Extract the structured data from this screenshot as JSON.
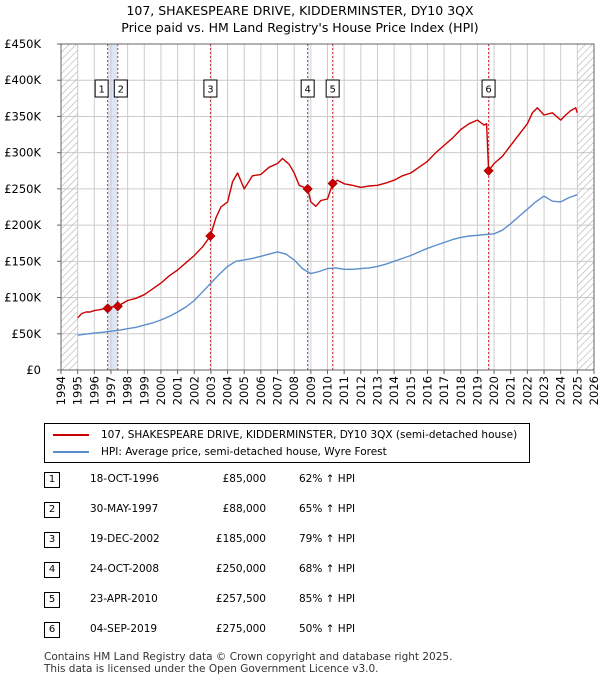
{
  "header": {
    "title_line1": "107, SHAKESPEARE DRIVE, KIDDERMINSTER, DY10 3QX",
    "title_line2": "Price paid vs. HM Land Registry's House Price Index (HPI)"
  },
  "legend": {
    "property_label": "107, SHAKESPEARE DRIVE, KIDDERMINSTER, DY10 3QX (semi-detached house)",
    "hpi_label": "HPI: Average price, semi-detached house, Wyre Forest"
  },
  "colors": {
    "property_line": "#cc0000",
    "hpi_line": "#5b8fcc",
    "marker_line": "#cc0000",
    "grid": "#cccccc",
    "hatch": "#bbbbbb",
    "shade": "#dce6f5"
  },
  "sales": [
    {
      "num": "1",
      "date": "18-OCT-1996",
      "price": "£85,000",
      "hpi": "62% ↑ HPI"
    },
    {
      "num": "2",
      "date": "30-MAY-1997",
      "price": "£88,000",
      "hpi": "65% ↑ HPI"
    },
    {
      "num": "3",
      "date": "19-DEC-2002",
      "price": "£185,000",
      "hpi": "79% ↑ HPI"
    },
    {
      "num": "4",
      "date": "24-OCT-2008",
      "price": "£250,000",
      "hpi": "68% ↑ HPI"
    },
    {
      "num": "5",
      "date": "23-APR-2010",
      "price": "£257,500",
      "hpi": "85% ↑ HPI"
    },
    {
      "num": "6",
      "date": "04-SEP-2019",
      "price": "£275,000",
      "hpi": "50% ↑ HPI"
    }
  ],
  "footer": {
    "line1": "Contains HM Land Registry data © Crown copyright and database right 2025.",
    "line2": "This data is licensed under the Open Government Licence v3.0."
  },
  "chart_data": {
    "type": "line",
    "title": "107, SHAKESPEARE DRIVE, KIDDERMINSTER, DY10 3QX",
    "subtitle": "Price paid vs. HM Land Registry's House Price Index (HPI)",
    "xlabel": "",
    "ylabel": "",
    "xlim": [
      1994,
      2026
    ],
    "ylim": [
      0,
      450000
    ],
    "x_ticks": [
      "1994",
      "1995",
      "1996",
      "1997",
      "1998",
      "1999",
      "2000",
      "2001",
      "2002",
      "2003",
      "2004",
      "2005",
      "2006",
      "2007",
      "2008",
      "2009",
      "2010",
      "2011",
      "2012",
      "2013",
      "2014",
      "2015",
      "2016",
      "2017",
      "2018",
      "2019",
      "2020",
      "2021",
      "2022",
      "2023",
      "2024",
      "2025",
      "2026"
    ],
    "y_ticks": [
      {
        "value": 0,
        "label": "£0"
      },
      {
        "value": 50000,
        "label": "£50K"
      },
      {
        "value": 100000,
        "label": "£100K"
      },
      {
        "value": 150000,
        "label": "£150K"
      },
      {
        "value": 200000,
        "label": "£200K"
      },
      {
        "value": 250000,
        "label": "£250K"
      },
      {
        "value": 300000,
        "label": "£300K"
      },
      {
        "value": 350000,
        "label": "£350K"
      },
      {
        "value": 400000,
        "label": "£400K"
      },
      {
        "value": 450000,
        "label": "£450K"
      }
    ],
    "grid": true,
    "hatched_before": 1995.0,
    "hatched_after": 2025.0,
    "shaded_ranges": [
      [
        1996.8,
        1997.41
      ],
      [
        2002.97,
        2003.05
      ],
      [
        2008.81,
        2008.9
      ],
      [
        2010.31,
        2010.39
      ],
      [
        2019.67,
        2019.76
      ]
    ],
    "sale_markers": [
      {
        "label": "1",
        "x": 1996.8,
        "y": 85000
      },
      {
        "label": "2",
        "x": 1997.41,
        "y": 88000
      },
      {
        "label": "3",
        "x": 2002.97,
        "y": 185000
      },
      {
        "label": "4",
        "x": 2008.81,
        "y": 250000
      },
      {
        "label": "5",
        "x": 2010.31,
        "y": 257500
      },
      {
        "label": "6",
        "x": 2019.67,
        "y": 275000
      }
    ],
    "series": [
      {
        "name": "107, SHAKESPEARE DRIVE, KIDDERMINSTER, DY10 3QX (semi-detached house)",
        "x": [
          1995.0,
          1995.25,
          1995.5,
          1995.75,
          1996.0,
          1996.25,
          1996.5,
          1996.8,
          1997.0,
          1997.41,
          1997.7,
          1998.0,
          1998.5,
          1999.0,
          1999.5,
          2000.0,
          2000.5,
          2001.0,
          2001.5,
          2002.0,
          2002.5,
          2002.97,
          2003.3,
          2003.6,
          2004.0,
          2004.3,
          2004.6,
          2005.0,
          2005.5,
          2006.0,
          2006.5,
          2007.0,
          2007.3,
          2007.7,
          2008.0,
          2008.3,
          2008.6,
          2008.81,
          2009.0,
          2009.3,
          2009.6,
          2010.0,
          2010.31,
          2010.6,
          2011.0,
          2011.5,
          2012.0,
          2012.5,
          2013.0,
          2013.5,
          2014.0,
          2014.5,
          2015.0,
          2015.5,
          2016.0,
          2016.5,
          2017.0,
          2017.5,
          2018.0,
          2018.5,
          2019.0,
          2019.4,
          2019.55,
          2019.67,
          2020.0,
          2020.5,
          2021.0,
          2021.5,
          2022.0,
          2022.3,
          2022.6,
          2023.0,
          2023.5,
          2024.0,
          2024.3,
          2024.6,
          2024.9,
          2025.0
        ],
        "values": [
          72000,
          78000,
          80000,
          80000,
          82000,
          83000,
          84000,
          85000,
          87000,
          88000,
          92000,
          96000,
          99000,
          104000,
          112000,
          120000,
          130000,
          138000,
          148000,
          158000,
          170000,
          185000,
          210000,
          225000,
          232000,
          260000,
          272000,
          250000,
          268000,
          270000,
          280000,
          285000,
          292000,
          284000,
          272000,
          255000,
          252000,
          250000,
          232000,
          226000,
          234000,
          236000,
          257500,
          262000,
          257000,
          255000,
          252000,
          254000,
          255000,
          258000,
          262000,
          268000,
          272000,
          280000,
          288000,
          300000,
          310000,
          320000,
          332000,
          340000,
          345000,
          338000,
          340000,
          275000,
          285000,
          295000,
          310000,
          325000,
          340000,
          355000,
          362000,
          352000,
          355000,
          345000,
          352000,
          358000,
          362000,
          355000
        ]
      },
      {
        "name": "HPI: Average price, semi-detached house, Wyre Forest",
        "x": [
          1995.0,
          1995.5,
          1996.0,
          1996.5,
          1997.0,
          1997.5,
          1998.0,
          1998.5,
          1999.0,
          1999.5,
          2000.0,
          2000.5,
          2001.0,
          2001.5,
          2002.0,
          2002.5,
          2003.0,
          2003.5,
          2004.0,
          2004.5,
          2005.0,
          2005.5,
          2006.0,
          2006.5,
          2007.0,
          2007.5,
          2008.0,
          2008.5,
          2009.0,
          2009.5,
          2010.0,
          2010.5,
          2011.0,
          2011.5,
          2012.0,
          2012.5,
          2013.0,
          2013.5,
          2014.0,
          2014.5,
          2015.0,
          2015.5,
          2016.0,
          2016.5,
          2017.0,
          2017.5,
          2018.0,
          2018.5,
          2019.0,
          2019.5,
          2020.0,
          2020.5,
          2021.0,
          2021.5,
          2022.0,
          2022.5,
          2023.0,
          2023.5,
          2024.0,
          2024.5,
          2025.0
        ],
        "values": [
          48000,
          49500,
          51000,
          52000,
          53500,
          55000,
          57000,
          59000,
          62000,
          65000,
          69000,
          74000,
          80000,
          87000,
          96000,
          108000,
          120000,
          132000,
          143000,
          150000,
          152000,
          154000,
          157000,
          160000,
          163000,
          160000,
          152000,
          140000,
          133000,
          136000,
          140000,
          141000,
          139000,
          139000,
          140000,
          141000,
          143000,
          146000,
          150000,
          154000,
          158000,
          163000,
          168000,
          172000,
          176000,
          180000,
          183000,
          185000,
          186000,
          187000,
          188000,
          193000,
          202000,
          212000,
          222000,
          232000,
          240000,
          233000,
          232000,
          238000,
          242000
        ]
      }
    ]
  }
}
